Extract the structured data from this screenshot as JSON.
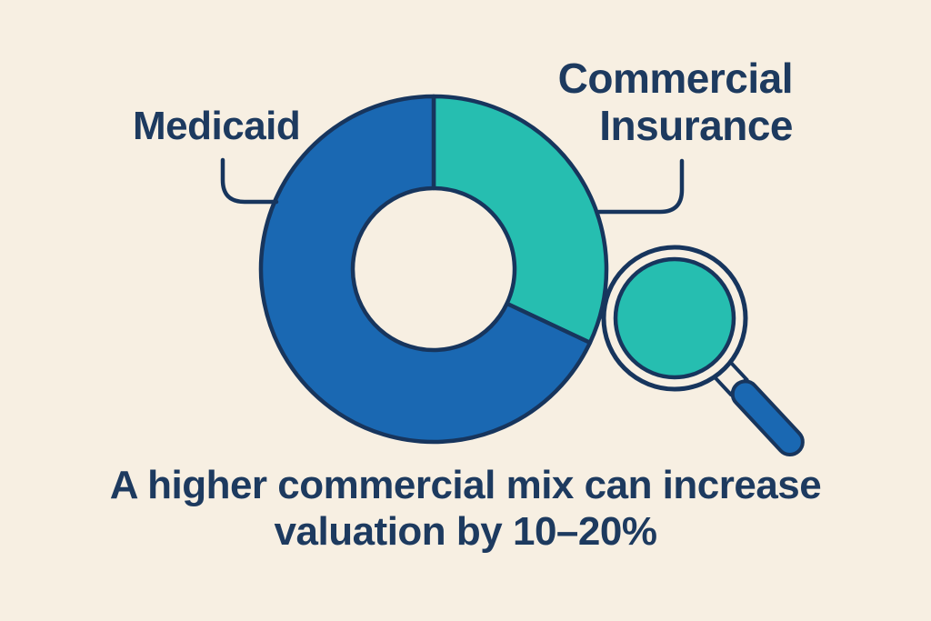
{
  "figure": {
    "background_color": "#f7efe2",
    "outline_color": "#17355d",
    "text_color": "#1d3a5f",
    "caption_line1": "A higher commercial mix can increase",
    "caption_line2": "valuation by 10–20%"
  },
  "labels": {
    "medicaid": "Medicaid",
    "commercial_line1": "Commercial",
    "commercial_line2": "Insurance"
  },
  "icons": {
    "magnifier": {
      "name": "magnifying-glass-icon",
      "lens_color": "#26beb0",
      "ring_color": "#f7efe2",
      "handle_color": "#1a68b2"
    }
  },
  "chart_data": {
    "type": "pie",
    "donut": true,
    "categories": [
      "Commercial Insurance",
      "Medicaid"
    ],
    "values": [
      32,
      68
    ],
    "values_note": "estimated percent share from segment angles (~116° and ~244°)",
    "colors": [
      "#26beb0",
      "#1a68b2"
    ],
    "start_angle_deg": 0,
    "direction": "clockwise",
    "title": "",
    "annotation": "A higher commercial mix can increase valuation by 10–20%",
    "legend_position": "callout-labels"
  }
}
